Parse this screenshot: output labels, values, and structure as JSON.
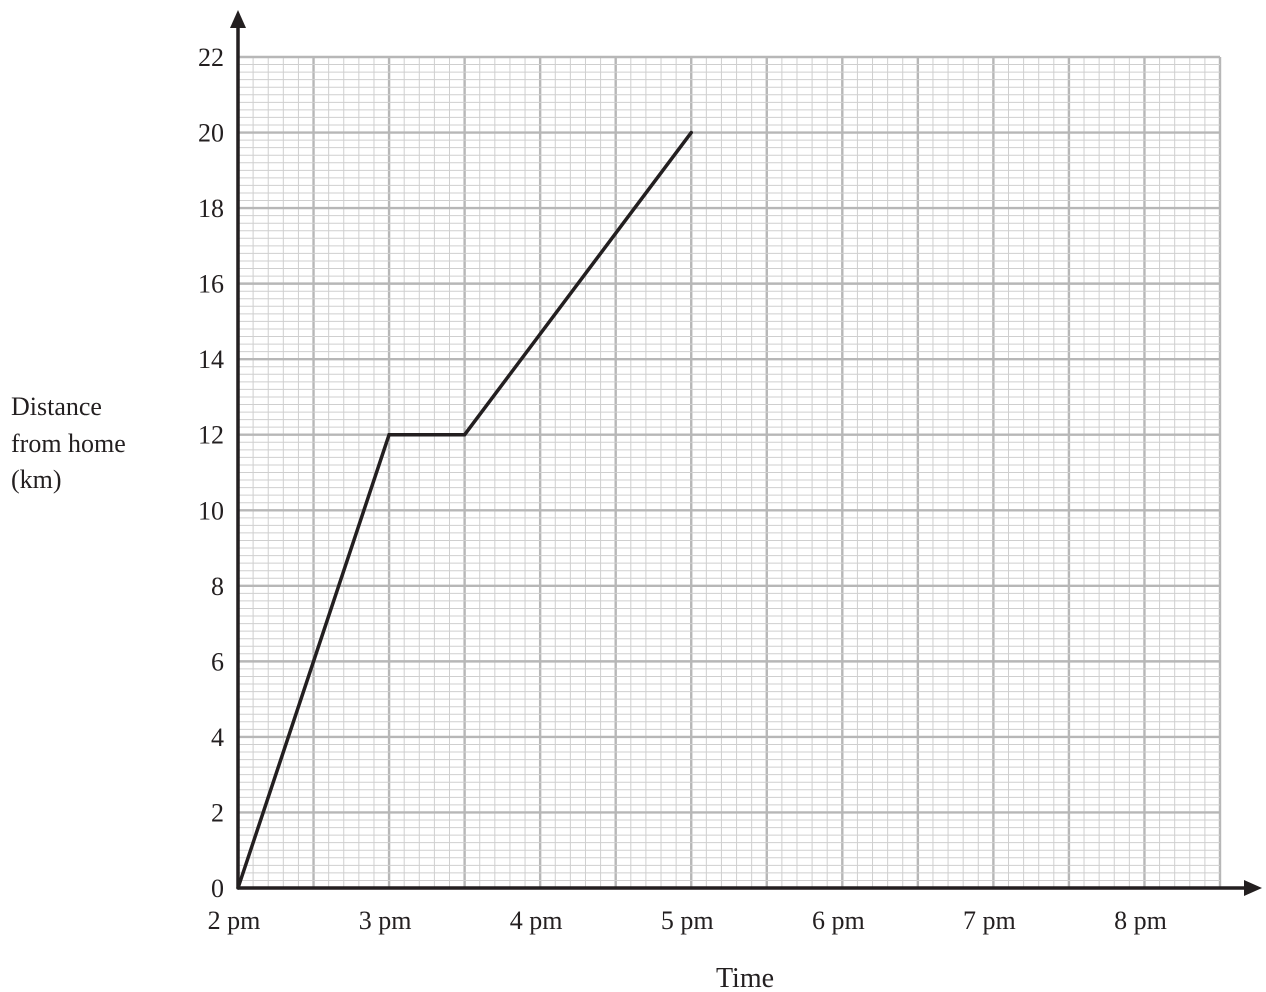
{
  "chart_data": {
    "type": "line",
    "xlabel": "Time",
    "ylabel_lines": [
      "Distance",
      "from home",
      "(km)"
    ],
    "x_tick_labels": [
      "2 pm",
      "3 pm",
      "4 pm",
      "5 pm",
      "6 pm",
      "7 pm",
      "8 pm"
    ],
    "y_ticks": [
      0,
      2,
      4,
      6,
      8,
      10,
      12,
      14,
      16,
      18,
      20,
      22
    ],
    "xlim_hours_after_2pm": [
      0,
      6.5
    ],
    "ylim": [
      0,
      22
    ],
    "grid": true,
    "series": [
      {
        "points": [
          {
            "x": "2 pm",
            "y": 0
          },
          {
            "x": "3 pm",
            "y": 12
          },
          {
            "x": "3:30 pm",
            "y": 12
          },
          {
            "x": "5 pm",
            "y": 20
          }
        ]
      }
    ]
  }
}
